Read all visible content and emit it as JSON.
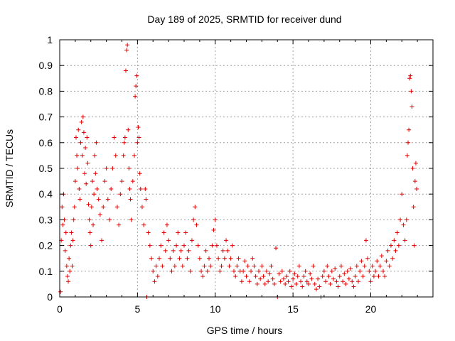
{
  "chart_data": {
    "type": "scatter",
    "title": "Day 189 of 2025, SRMTID for receiver dund",
    "xlabel": "GPS time / hours",
    "ylabel": "SRMTID / TECUs",
    "xlim": [
      0,
      24
    ],
    "ylim": [
      0,
      1
    ],
    "x_ticks": [
      0,
      5,
      10,
      15,
      20
    ],
    "x_tick_labels": [
      "0",
      "5",
      "10",
      "15",
      "20"
    ],
    "y_ticks": [
      0,
      0.1,
      0.2,
      0.3,
      0.4,
      0.5,
      0.6,
      0.7,
      0.8,
      0.9,
      1
    ],
    "y_tick_labels": [
      "0",
      "0.1",
      "0.2",
      "0.3",
      "0.4",
      "0.5",
      "0.6",
      "0.7",
      "0.8",
      "0.9",
      "1"
    ],
    "grid": true,
    "marker": "+",
    "marker_color": "#e00000",
    "series": [
      {
        "name": "SRMTID",
        "points": [
          [
            0.05,
            0.02
          ],
          [
            0.1,
            0.22
          ],
          [
            0.15,
            0.35
          ],
          [
            0.2,
            0.28
          ],
          [
            0.25,
            0.4
          ],
          [
            0.3,
            0.3
          ],
          [
            0.35,
            0.18
          ],
          [
            0.4,
            0.25
          ],
          [
            0.45,
            0.12
          ],
          [
            0.5,
            0.08
          ],
          [
            0.55,
            0.06
          ],
          [
            0.6,
            0.15
          ],
          [
            0.65,
            0.1
          ],
          [
            0.7,
            0.2
          ],
          [
            0.75,
            0.25
          ],
          [
            0.8,
            0.12
          ],
          [
            0.85,
            0.22
          ],
          [
            0.9,
            0.3
          ],
          [
            0.95,
            0.35
          ],
          [
            1.0,
            0.45
          ],
          [
            1.05,
            0.62
          ],
          [
            1.1,
            0.55
          ],
          [
            1.15,
            0.5
          ],
          [
            1.2,
            0.65
          ],
          [
            1.25,
            0.42
          ],
          [
            1.3,
            0.38
          ],
          [
            1.35,
            0.6
          ],
          [
            1.4,
            0.68
          ],
          [
            1.45,
            0.55
          ],
          [
            1.5,
            0.7
          ],
          [
            1.55,
            0.64
          ],
          [
            1.6,
            0.48
          ],
          [
            1.65,
            0.58
          ],
          [
            1.7,
            0.44
          ],
          [
            1.75,
            0.62
          ],
          [
            1.8,
            0.52
          ],
          [
            1.85,
            0.36
          ],
          [
            1.9,
            0.3
          ],
          [
            1.95,
            0.25
          ],
          [
            2.0,
            0.2
          ],
          [
            2.05,
            0.35
          ],
          [
            2.1,
            0.45
          ],
          [
            2.15,
            0.28
          ],
          [
            2.2,
            0.4
          ],
          [
            2.25,
            0.55
          ],
          [
            2.3,
            0.48
          ],
          [
            2.35,
            0.6
          ],
          [
            2.4,
            0.42
          ],
          [
            2.5,
            0.38
          ],
          [
            2.6,
            0.32
          ],
          [
            2.7,
            0.22
          ],
          [
            2.8,
            0.35
          ],
          [
            2.9,
            0.45
          ],
          [
            3.0,
            0.5
          ],
          [
            3.1,
            0.38
          ],
          [
            3.2,
            0.3
          ],
          [
            3.3,
            0.42
          ],
          [
            3.4,
            0.5
          ],
          [
            3.5,
            0.62
          ],
          [
            3.6,
            0.55
          ],
          [
            3.7,
            0.35
          ],
          [
            3.8,
            0.28
          ],
          [
            3.9,
            0.4
          ],
          [
            4.0,
            0.45
          ],
          [
            4.1,
            0.55
          ],
          [
            4.15,
            0.6
          ],
          [
            4.2,
            0.62
          ],
          [
            4.25,
            0.88
          ],
          [
            4.3,
            0.96
          ],
          [
            4.35,
            0.98
          ],
          [
            4.4,
            0.65
          ],
          [
            4.45,
            0.5
          ],
          [
            4.5,
            0.42
          ],
          [
            4.55,
            0.38
          ],
          [
            4.6,
            0.3
          ],
          [
            4.7,
            0.45
          ],
          [
            4.8,
            0.55
          ],
          [
            4.85,
            0.78
          ],
          [
            4.9,
            0.82
          ],
          [
            4.95,
            0.86
          ],
          [
            5.0,
            0.6
          ],
          [
            5.05,
            0.66
          ],
          [
            5.1,
            0.62
          ],
          [
            5.15,
            0.48
          ],
          [
            5.2,
            0.42
          ],
          [
            5.3,
            0.35
          ],
          [
            5.4,
            0.28
          ],
          [
            5.5,
            0.42
          ],
          [
            5.55,
            0.38
          ],
          [
            5.6,
            0.0
          ],
          [
            5.7,
            0.25
          ],
          [
            5.8,
            0.2
          ],
          [
            5.9,
            0.15
          ],
          [
            6.0,
            0.1
          ],
          [
            6.1,
            0.06
          ],
          [
            6.2,
            0.12
          ],
          [
            6.3,
            0.08
          ],
          [
            6.4,
            0.15
          ],
          [
            6.5,
            0.2
          ],
          [
            6.6,
            0.12
          ],
          [
            6.7,
            0.25
          ],
          [
            6.8,
            0.18
          ],
          [
            6.9,
            0.28
          ],
          [
            7.0,
            0.22
          ],
          [
            7.1,
            0.15
          ],
          [
            7.2,
            0.1
          ],
          [
            7.3,
            0.18
          ],
          [
            7.4,
            0.12
          ],
          [
            7.5,
            0.2
          ],
          [
            7.6,
            0.25
          ],
          [
            7.7,
            0.15
          ],
          [
            7.8,
            0.18
          ],
          [
            7.9,
            0.12
          ],
          [
            8.0,
            0.2
          ],
          [
            8.1,
            0.25
          ],
          [
            8.2,
            0.15
          ],
          [
            8.3,
            0.18
          ],
          [
            8.4,
            0.1
          ],
          [
            8.5,
            0.22
          ],
          [
            8.6,
            0.3
          ],
          [
            8.7,
            0.35
          ],
          [
            8.8,
            0.28
          ],
          [
            8.9,
            0.2
          ],
          [
            9.0,
            0.15
          ],
          [
            9.1,
            0.1
          ],
          [
            9.2,
            0.08
          ],
          [
            9.3,
            0.12
          ],
          [
            9.4,
            0.18
          ],
          [
            9.5,
            0.1
          ],
          [
            9.6,
            0.15
          ],
          [
            9.7,
            0.12
          ],
          [
            9.8,
            0.2
          ],
          [
            9.9,
            0.26
          ],
          [
            10.0,
            0.3
          ],
          [
            10.1,
            0.2
          ],
          [
            10.2,
            0.15
          ],
          [
            10.3,
            0.1
          ],
          [
            10.4,
            0.12
          ],
          [
            10.5,
            0.18
          ],
          [
            10.6,
            0.15
          ],
          [
            10.7,
            0.22
          ],
          [
            10.8,
            0.18
          ],
          [
            10.9,
            0.12
          ],
          [
            11.0,
            0.15
          ],
          [
            11.1,
            0.2
          ],
          [
            11.2,
            0.1
          ],
          [
            11.3,
            0.08
          ],
          [
            11.4,
            0.12
          ],
          [
            11.5,
            0.15
          ],
          [
            11.6,
            0.1
          ],
          [
            11.7,
            0.06
          ],
          [
            11.8,
            0.1
          ],
          [
            11.9,
            0.14
          ],
          [
            12.0,
            0.08
          ],
          [
            12.1,
            0.12
          ],
          [
            12.2,
            0.06
          ],
          [
            12.3,
            0.1
          ],
          [
            12.4,
            0.15
          ],
          [
            12.5,
            0.12
          ],
          [
            12.6,
            0.08
          ],
          [
            12.7,
            0.05
          ],
          [
            12.8,
            0.1
          ],
          [
            12.9,
            0.07
          ],
          [
            13.0,
            0.12
          ],
          [
            13.1,
            0.08
          ],
          [
            13.2,
            0.05
          ],
          [
            13.3,
            0.1
          ],
          [
            13.4,
            0.06
          ],
          [
            13.5,
            0.09
          ],
          [
            13.6,
            0.12
          ],
          [
            13.7,
            0.07
          ],
          [
            13.8,
            0.05
          ],
          [
            13.9,
            0.19
          ],
          [
            14.0,
            0.0
          ],
          [
            14.1,
            0.09
          ],
          [
            14.2,
            0.06
          ],
          [
            14.3,
            0.1
          ],
          [
            14.4,
            0.07
          ],
          [
            14.5,
            0.05
          ],
          [
            14.6,
            0.08
          ],
          [
            14.7,
            0.06
          ],
          [
            14.8,
            0.1
          ],
          [
            14.9,
            0.04
          ],
          [
            15.0,
            0.07
          ],
          [
            15.1,
            0.09
          ],
          [
            15.2,
            0.05
          ],
          [
            15.3,
            0.08
          ],
          [
            15.4,
            0.12
          ],
          [
            15.5,
            0.06
          ],
          [
            15.6,
            0.04
          ],
          [
            15.7,
            0.08
          ],
          [
            15.8,
            0.1
          ],
          [
            15.9,
            0.06
          ],
          [
            16.0,
            0.05
          ],
          [
            16.1,
            0.09
          ],
          [
            16.2,
            0.07
          ],
          [
            16.3,
            0.12
          ],
          [
            16.4,
            0.05
          ],
          [
            16.5,
            0.03
          ],
          [
            16.6,
            0.07
          ],
          [
            16.7,
            0.04
          ],
          [
            16.8,
            0.0
          ],
          [
            16.9,
            0.08
          ],
          [
            17.0,
            0.1
          ],
          [
            17.1,
            0.06
          ],
          [
            17.2,
            0.12
          ],
          [
            17.3,
            0.08
          ],
          [
            17.4,
            0.05
          ],
          [
            17.5,
            0.1
          ],
          [
            17.6,
            0.07
          ],
          [
            17.7,
            0.11
          ],
          [
            17.8,
            0.06
          ],
          [
            17.9,
            0.04
          ],
          [
            18.0,
            0.08
          ],
          [
            18.1,
            0.12
          ],
          [
            18.2,
            0.06
          ],
          [
            18.3,
            0.09
          ],
          [
            18.4,
            0.05
          ],
          [
            18.5,
            0.1
          ],
          [
            18.6,
            0.07
          ],
          [
            18.7,
            0.11
          ],
          [
            18.8,
            0.06
          ],
          [
            18.9,
            0.04
          ],
          [
            19.0,
            0.08
          ],
          [
            19.1,
            0.12
          ],
          [
            19.2,
            0.06
          ],
          [
            19.3,
            0.1
          ],
          [
            19.4,
            0.14
          ],
          [
            19.5,
            0.08
          ],
          [
            19.6,
            0.12
          ],
          [
            19.7,
            0.22
          ],
          [
            19.8,
            0.15
          ],
          [
            19.9,
            0.1
          ],
          [
            20.0,
            0.06
          ],
          [
            20.1,
            0.12
          ],
          [
            20.2,
            0.08
          ],
          [
            20.3,
            0.1
          ],
          [
            20.4,
            0.14
          ],
          [
            20.5,
            0.08
          ],
          [
            20.6,
            0.12
          ],
          [
            20.7,
            0.16
          ],
          [
            20.8,
            0.1
          ],
          [
            20.9,
            0.08
          ],
          [
            21.0,
            0.14
          ],
          [
            21.1,
            0.18
          ],
          [
            21.2,
            0.12
          ],
          [
            21.3,
            0.2
          ],
          [
            21.4,
            0.15
          ],
          [
            21.5,
            0.22
          ],
          [
            21.6,
            0.18
          ],
          [
            21.7,
            0.25
          ],
          [
            21.8,
            0.2
          ],
          [
            21.9,
            0.3
          ],
          [
            22.0,
            0.4
          ],
          [
            22.1,
            0.28
          ],
          [
            22.2,
            0.22
          ],
          [
            22.3,
            0.3
          ],
          [
            22.35,
            0.55
          ],
          [
            22.4,
            0.6
          ],
          [
            22.45,
            0.65
          ],
          [
            22.5,
            0.85
          ],
          [
            22.55,
            0.86
          ],
          [
            22.6,
            0.8
          ],
          [
            22.65,
            0.74
          ],
          [
            22.7,
            0.5
          ],
          [
            22.75,
            0.35
          ],
          [
            22.8,
            0.2
          ],
          [
            22.85,
            0.45
          ],
          [
            22.9,
            0.52
          ],
          [
            22.95,
            0.42
          ]
        ]
      }
    ]
  }
}
